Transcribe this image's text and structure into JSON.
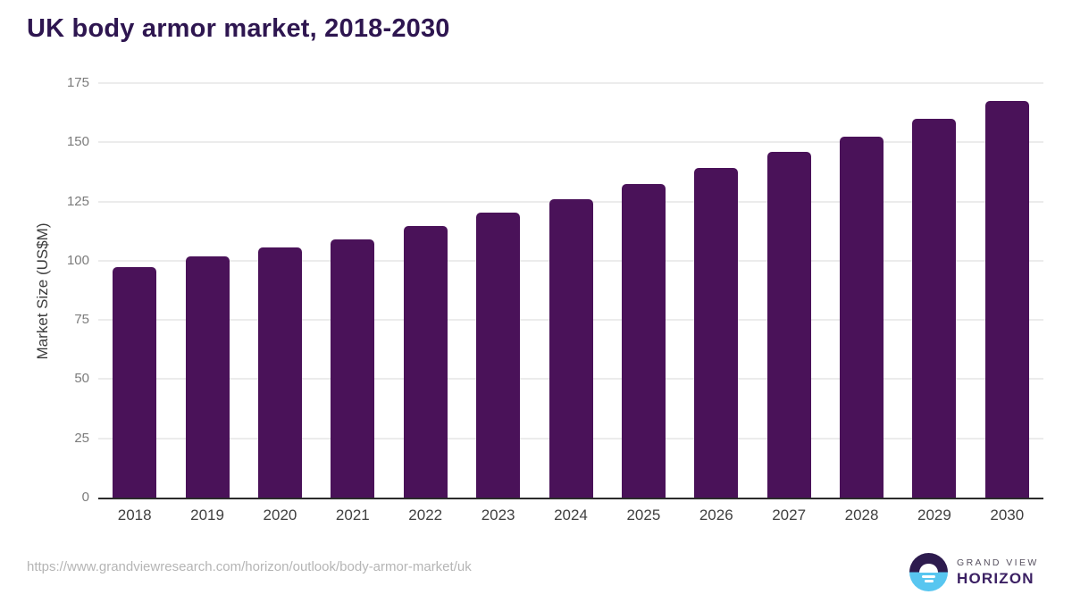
{
  "header": {
    "title": "UK body armor market, 2018-2030"
  },
  "chart_data": {
    "type": "bar",
    "title": "UK body armor market, 2018-2030",
    "categories": [
      "2018",
      "2019",
      "2020",
      "2021",
      "2022",
      "2023",
      "2024",
      "2025",
      "2026",
      "2027",
      "2028",
      "2029",
      "2030"
    ],
    "values": [
      97.5,
      102,
      105.5,
      109,
      114.5,
      120.5,
      126,
      132.5,
      139,
      146,
      152.5,
      160,
      167.5
    ],
    "xlabel": "",
    "ylabel": "Market Size (US$M)",
    "ylim": [
      0,
      175
    ],
    "ytick_step": 25,
    "yticks": [
      0,
      25,
      50,
      75,
      100,
      125,
      150,
      175
    ],
    "grid": true,
    "legend": "none",
    "bar_color": "#4a1259",
    "gridline_color": "#ececec",
    "axis_line_color": "#2b2b2b"
  },
  "footer": {
    "source_url": "https://www.grandviewresearch.com/horizon/outlook/body-armor-market/uk",
    "logo": {
      "icon": "horizon-sun-icon",
      "brand_top": "GRAND VIEW",
      "brand_bottom": "HORIZON",
      "icon_dark_color": "#2d1b4e",
      "icon_blue_color": "#58c6f0"
    }
  }
}
